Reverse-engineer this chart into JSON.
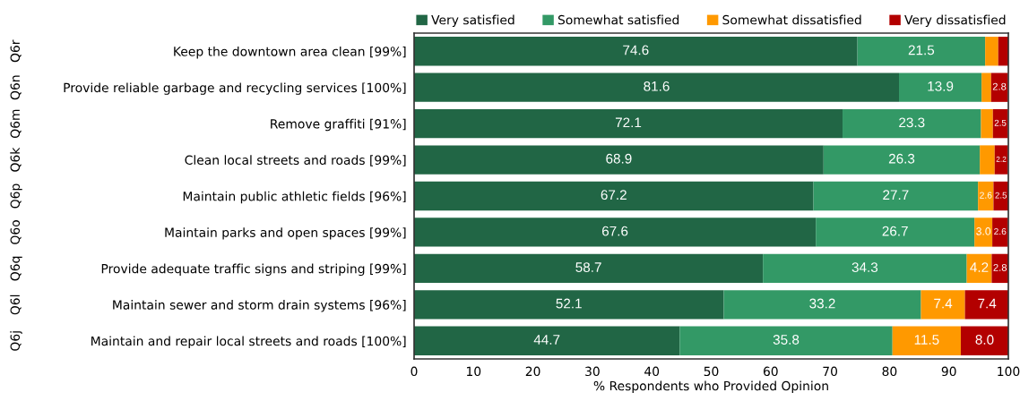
{
  "chart_data": {
    "type": "bar",
    "orientation": "horizontal",
    "stacked": true,
    "xlabel": "% Respondents who Provided Opinion",
    "categories": [
      "Keep the downtown area clean [99%]",
      "Provide reliable garbage and recycling services [100%]",
      "Remove graffiti [91%]",
      "Clean local streets and roads [99%]",
      "Maintain public athletic fields [96%]",
      "Maintain parks and open spaces [99%]",
      "Provide adequate traffic signs and striping [99%]",
      "Maintain sewer and storm drain systems [96%]",
      "Maintain and repair local streets and roads [100%]"
    ],
    "annotations": [
      "Q6r",
      "Q6n",
      "Q6m",
      "Q6k",
      "Q6p",
      "Q6o",
      "Q6q",
      "Q6l",
      "Q6j"
    ],
    "series": [
      {
        "name": "Very satisfied",
        "color": "#216645",
        "values": [
          74.6,
          81.6,
          72.1,
          68.9,
          67.2,
          67.6,
          58.7,
          52.1,
          44.7
        ],
        "value_labels": [
          "74.6",
          "81.6",
          "72.1",
          "68.9",
          "67.2",
          "67.6",
          "58.7",
          "52.1",
          "44.7"
        ]
      },
      {
        "name": "Somewhat satisfied",
        "color": "#339966",
        "values": [
          21.5,
          13.9,
          23.3,
          26.3,
          27.7,
          26.7,
          34.3,
          33.2,
          35.8
        ],
        "value_labels": [
          "21.5",
          "13.9",
          "23.3",
          "26.3",
          "27.7",
          "26.7",
          "34.3",
          "33.2",
          "35.8"
        ]
      },
      {
        "name": "Somewhat dissatisfied",
        "color": "#ff9900",
        "values": [
          2.2,
          1.6,
          2.0,
          2.5,
          2.6,
          3.0,
          4.2,
          7.4,
          11.5
        ],
        "value_labels": [
          null,
          null,
          null,
          null,
          "2.6",
          "3.0",
          "4.2",
          "7.4",
          "11.5"
        ]
      },
      {
        "name": "Very dissatisfied",
        "color": "#b30000",
        "values": [
          1.7,
          2.8,
          2.5,
          2.2,
          2.5,
          2.6,
          2.8,
          7.4,
          8.0
        ],
        "value_labels": [
          null,
          "2.8",
          "2.5",
          "2.2",
          "2.5",
          "2.6",
          "2.8",
          "7.4",
          "8.0"
        ]
      }
    ],
    "xlim": [
      0,
      100
    ],
    "xticks": [
      0,
      10,
      20,
      30,
      40,
      50,
      60,
      70,
      80,
      90,
      100
    ],
    "grid": false,
    "legend": "top"
  }
}
